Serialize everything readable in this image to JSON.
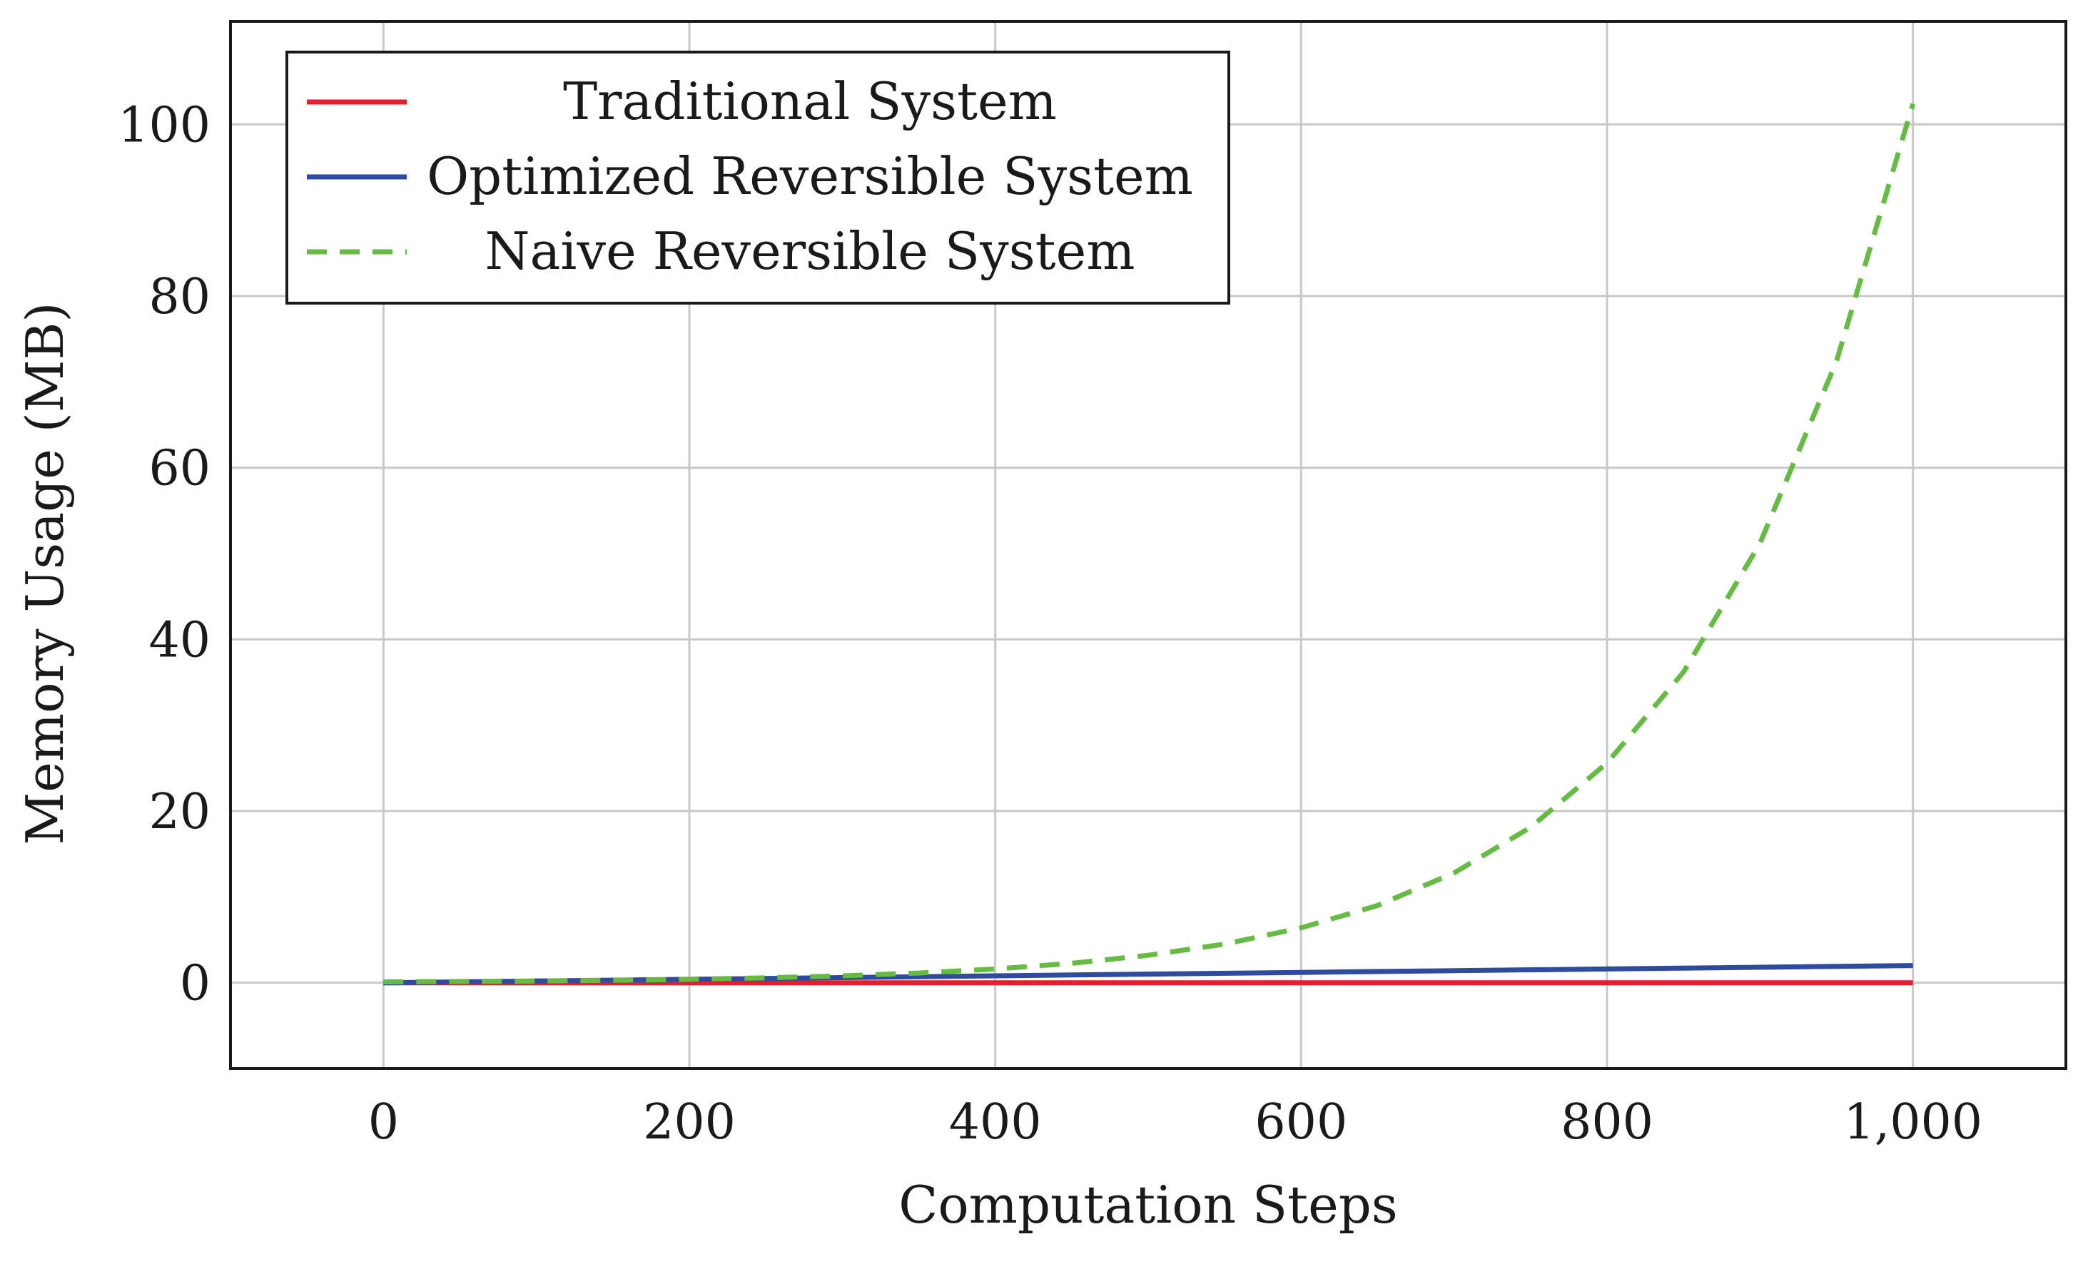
{
  "chart_data": {
    "type": "line",
    "title": "",
    "xlabel": "Computation Steps",
    "ylabel": "Memory Usage (MB)",
    "xlim": [
      -100,
      1100
    ],
    "ylim": [
      -10,
      112
    ],
    "grid": true,
    "legend_position": "top-left",
    "x_ticks": [
      0,
      200,
      400,
      600,
      800,
      1000
    ],
    "x_tick_labels": [
      "0",
      "200",
      "400",
      "600",
      "800",
      "1,000"
    ],
    "y_ticks": [
      0,
      20,
      40,
      60,
      80,
      100
    ],
    "y_tick_labels": [
      "0",
      "20",
      "40",
      "60",
      "80",
      "100"
    ],
    "series": [
      {
        "name": "Traditional System",
        "color": "#e0202a",
        "style": "solid",
        "x": [
          0,
          100,
          200,
          300,
          400,
          500,
          600,
          700,
          800,
          900,
          1000
        ],
        "y": [
          0,
          0,
          0,
          0,
          0,
          0,
          0,
          0,
          0,
          0,
          0
        ]
      },
      {
        "name": "Optimized Reversible System",
        "color": "#2f4b9e",
        "style": "solid",
        "x": [
          0,
          100,
          200,
          300,
          400,
          500,
          600,
          700,
          800,
          900,
          1000
        ],
        "y": [
          0,
          0.2,
          0.4,
          0.6,
          0.8,
          1.0,
          1.2,
          1.4,
          1.6,
          1.8,
          2.0
        ]
      },
      {
        "name": "Naive Reversible System",
        "color": "#66bb44",
        "style": "dashed",
        "x": [
          0,
          50,
          100,
          150,
          200,
          250,
          300,
          350,
          400,
          450,
          500,
          550,
          600,
          650,
          700,
          750,
          800,
          850,
          900,
          950,
          1000
        ],
        "y": [
          0.1,
          0.14,
          0.2,
          0.28,
          0.4,
          0.57,
          0.8,
          1.13,
          1.6,
          2.26,
          3.2,
          4.5,
          6.4,
          9.0,
          12.8,
          18.1,
          25.6,
          36.2,
          51.2,
          72.4,
          102.4
        ]
      }
    ]
  }
}
